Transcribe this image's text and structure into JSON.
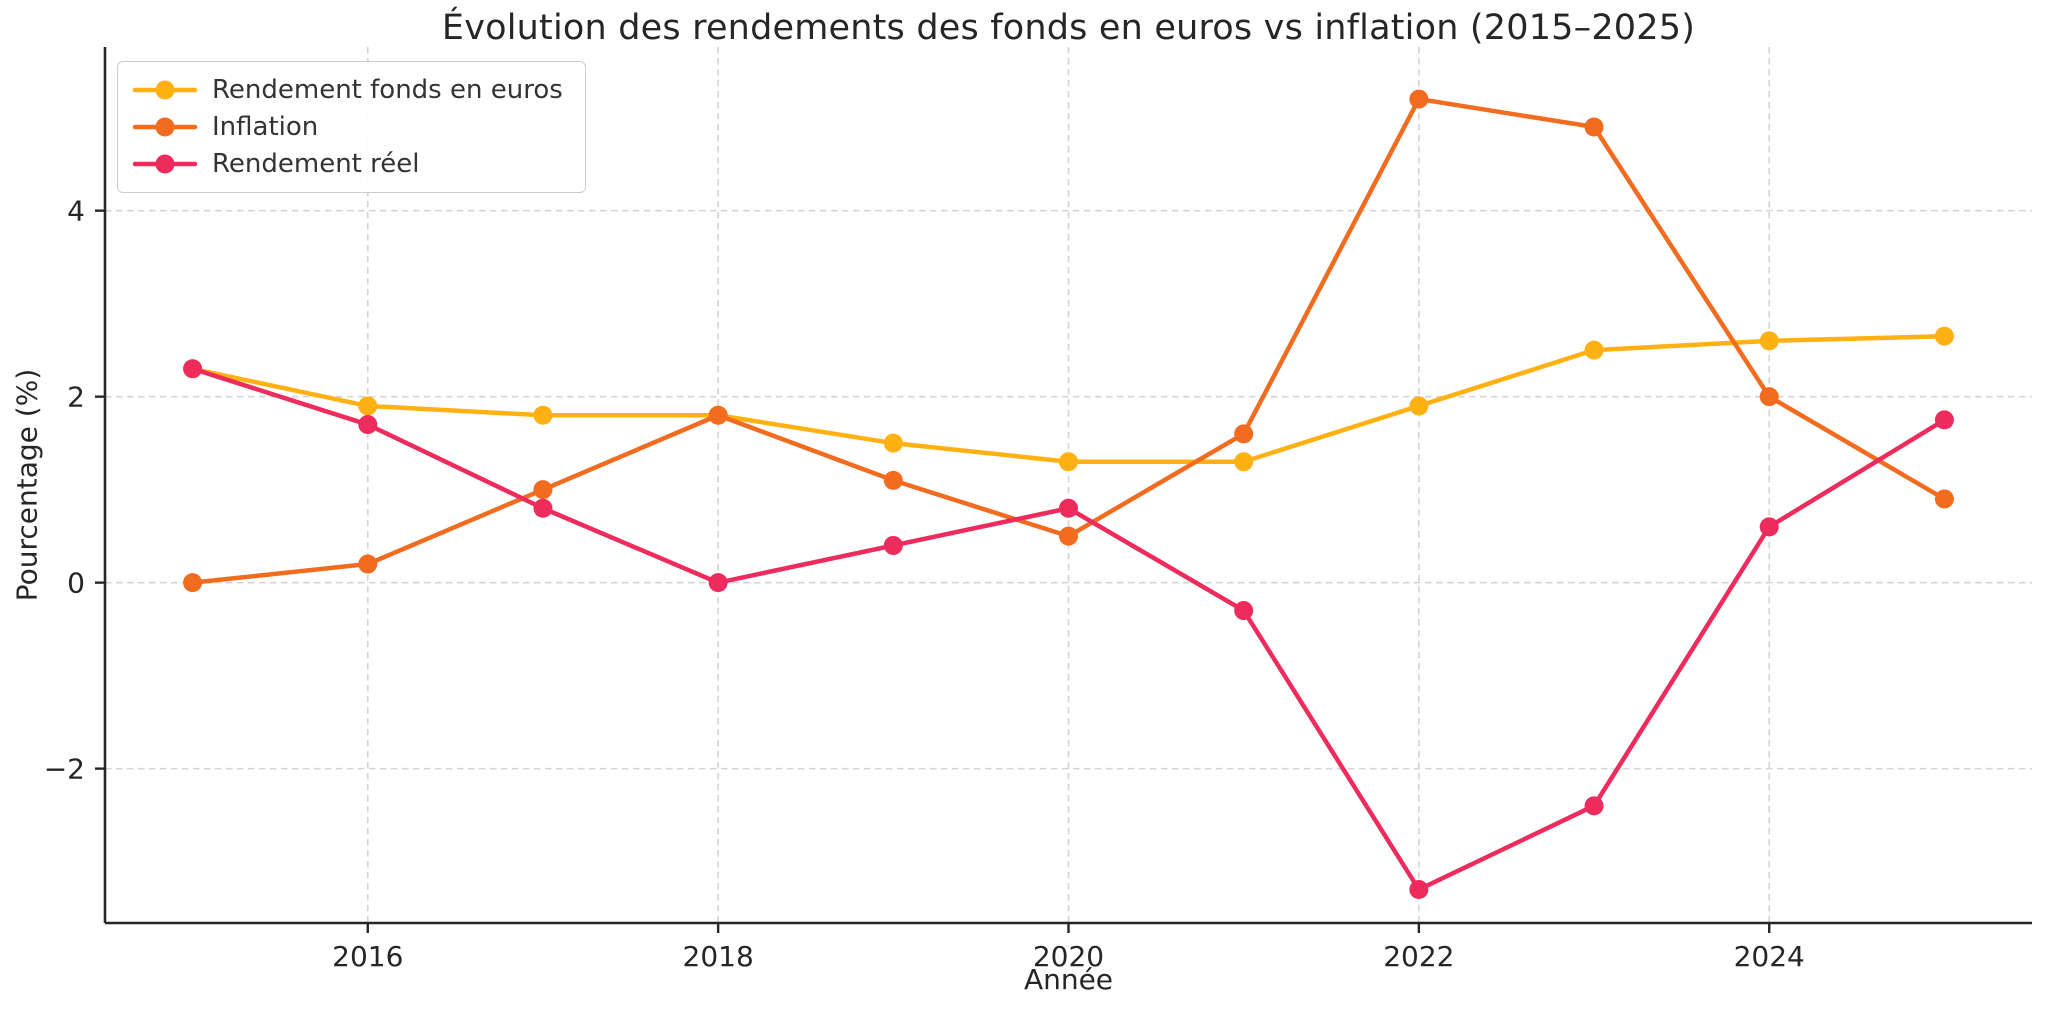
{
  "chart_data": {
    "type": "line",
    "title": "Évolution des rendements des fonds en euros vs inflation (2015–2025)",
    "xlabel": "Année",
    "ylabel": "Pourcentage (%)",
    "x": [
      2015,
      2016,
      2017,
      2018,
      2019,
      2020,
      2021,
      2022,
      2023,
      2024,
      2025
    ],
    "series": [
      {
        "name": "Rendement fonds en euros",
        "color": "#FFB114",
        "values": [
          2.3,
          1.9,
          1.8,
          1.8,
          1.5,
          1.3,
          1.3,
          1.9,
          2.5,
          2.6,
          2.65
        ]
      },
      {
        "name": "Inflation",
        "color": "#F26C1F",
        "values": [
          0.0,
          0.2,
          1.0,
          1.8,
          1.1,
          0.5,
          1.6,
          5.2,
          4.9,
          2.0,
          0.9
        ]
      },
      {
        "name": "Rendement réel",
        "color": "#EE2B5D",
        "values": [
          2.3,
          1.7,
          0.8,
          0.0,
          0.4,
          0.8,
          -0.3,
          -3.3,
          -2.4,
          0.6,
          1.75
        ]
      }
    ],
    "xticks": [
      2016,
      2018,
      2020,
      2022,
      2024
    ],
    "yticks": [
      -2,
      0,
      2,
      4
    ],
    "xlim": [
      2014.5,
      2025.5
    ],
    "ylim": [
      -3.66,
      5.76
    ],
    "grid": true,
    "legend_position": "upper left",
    "style": {
      "grid_color": "#d4d4d4",
      "axis_color": "#262626",
      "tick_label_color": "#262626",
      "line_width": 4.5,
      "marker_radius": 9.5
    }
  }
}
